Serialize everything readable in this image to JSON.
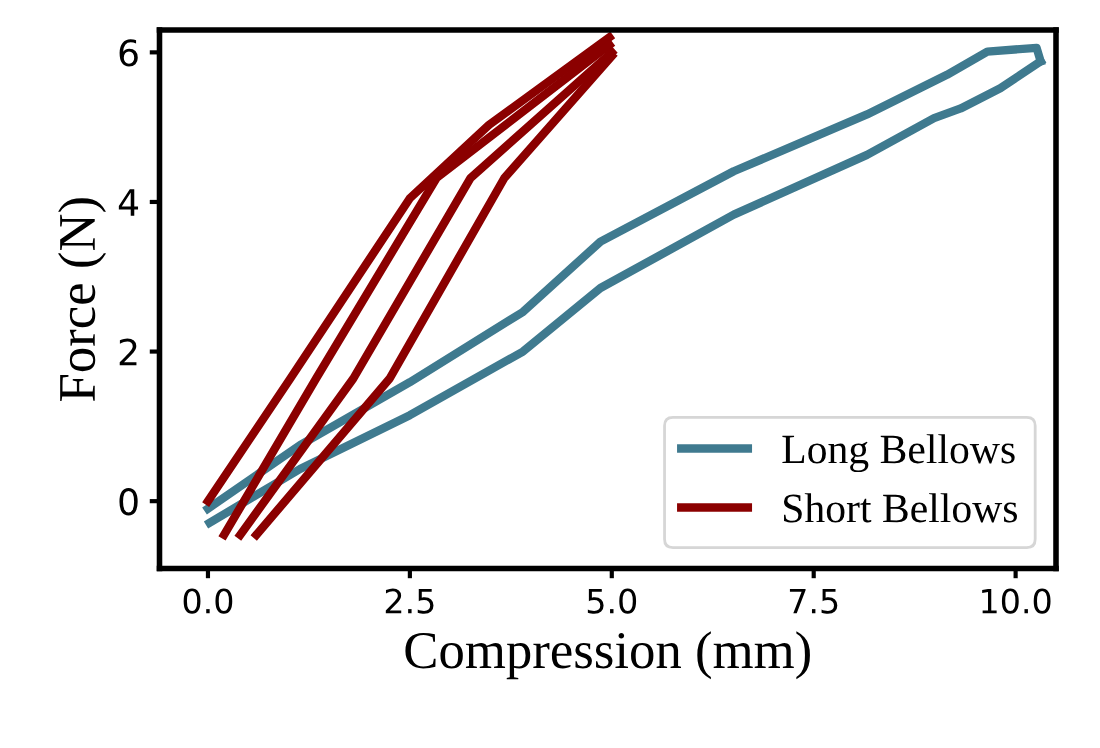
{
  "chart_data": {
    "type": "line",
    "xlabel": "Compression (mm)",
    "ylabel": "Force (N)",
    "xlim": [
      -0.6,
      10.5
    ],
    "ylim": [
      -0.9,
      6.3
    ],
    "xticks": [
      {
        "value": 0,
        "label": "0.0"
      },
      {
        "value": 2.5,
        "label": "2.5"
      },
      {
        "value": 5,
        "label": "5.0"
      },
      {
        "value": 7.5,
        "label": "7.5"
      },
      {
        "value": 10,
        "label": "10.0"
      }
    ],
    "yticks": [
      0,
      2,
      4,
      6
    ],
    "grid": false,
    "legend": "bottom right",
    "marker": "none",
    "line_style": "solid",
    "series": [
      {
        "name": "Long Bellows",
        "color": "#3f7a8f",
        "x": [
          0,
          1.14,
          2.5,
          3.9,
          4.86,
          6.51,
          8.16,
          9.15,
          9.65,
          10.26,
          10.31
        ],
        "values": [
          -0.1,
          0.75,
          1.59,
          2.53,
          3.47,
          4.41,
          5.17,
          5.7,
          6.01,
          6.06,
          5.88
        ]
      },
      {
        "color": "#3f7a8f",
        "x": [
          0.02,
          1.14,
          2.5,
          3.9,
          4.86,
          6.51,
          8.16,
          8.99,
          9.32,
          9.81,
          10.31
        ],
        "values": [
          -0.29,
          0.43,
          1.15,
          2.0,
          2.85,
          3.83,
          4.63,
          5.12,
          5.25,
          5.52,
          5.88
        ]
      },
      {
        "name": "Short Bellows",
        "color": "#8b0000",
        "x": [
          0,
          1.02,
          2.5,
          3.48,
          4.97
        ],
        "values": [
          0.0,
          1.64,
          4.05,
          5.03,
          6.2
        ]
      },
      {
        "color": "#8b0000",
        "x": [
          0.2,
          1.34,
          2.83,
          4.97
        ],
        "values": [
          -0.45,
          1.64,
          4.32,
          6.1
        ]
      },
      {
        "color": "#8b0000",
        "x": [
          0.4,
          1.8,
          3.25,
          5.0
        ],
        "values": [
          -0.45,
          1.64,
          4.32,
          6.0
        ]
      },
      {
        "color": "#8b0000",
        "x": [
          0.6,
          2.25,
          3.67,
          5.0
        ],
        "values": [
          -0.45,
          1.64,
          4.32,
          5.95
        ]
      }
    ]
  }
}
